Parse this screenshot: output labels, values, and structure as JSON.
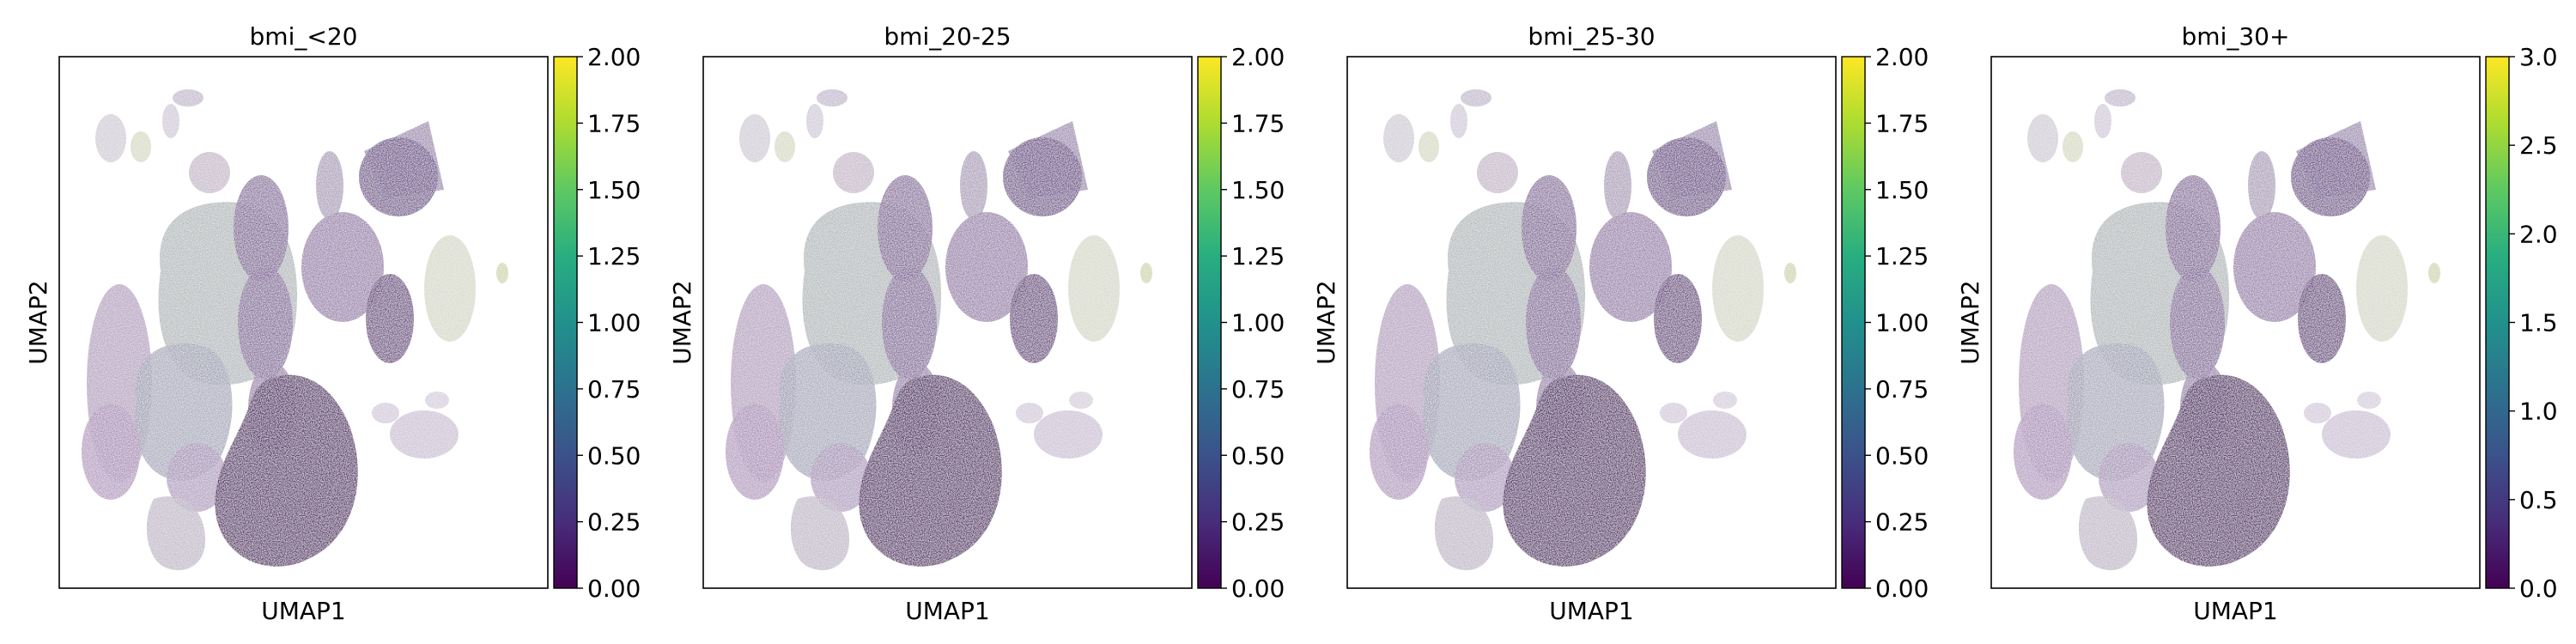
{
  "chart_data": [
    {
      "type": "scatter",
      "title": "bmi_<20",
      "xlabel": "UMAP1",
      "ylabel": "UMAP2",
      "colorbar": {
        "colormap": "viridis",
        "range": [
          0.0,
          2.0
        ],
        "ticks": [
          "0.00",
          "0.25",
          "0.50",
          "0.75",
          "1.00",
          "1.25",
          "1.50",
          "1.75",
          "2.00"
        ]
      }
    },
    {
      "type": "scatter",
      "title": "bmi_20-25",
      "xlabel": "UMAP1",
      "ylabel": "UMAP2",
      "colorbar": {
        "colormap": "viridis",
        "range": [
          0.0,
          2.0
        ],
        "ticks": [
          "0.00",
          "0.25",
          "0.50",
          "0.75",
          "1.00",
          "1.25",
          "1.50",
          "1.75",
          "2.00"
        ]
      }
    },
    {
      "type": "scatter",
      "title": "bmi_25-30",
      "xlabel": "UMAP1",
      "ylabel": "UMAP2",
      "colorbar": {
        "colormap": "viridis",
        "range": [
          0.0,
          2.0
        ],
        "ticks": [
          "0.00",
          "0.25",
          "0.50",
          "0.75",
          "1.00",
          "1.25",
          "1.50",
          "1.75",
          "2.00"
        ]
      }
    },
    {
      "type": "scatter",
      "title": "bmi_30+",
      "xlabel": "UMAP1",
      "ylabel": "UMAP2",
      "colorbar": {
        "colormap": "viridis",
        "range": [
          0.0,
          3.0
        ],
        "ticks": [
          "0.0",
          "0.5",
          "1.0",
          "1.5",
          "2.0",
          "2.5",
          "3.0"
        ]
      }
    }
  ]
}
